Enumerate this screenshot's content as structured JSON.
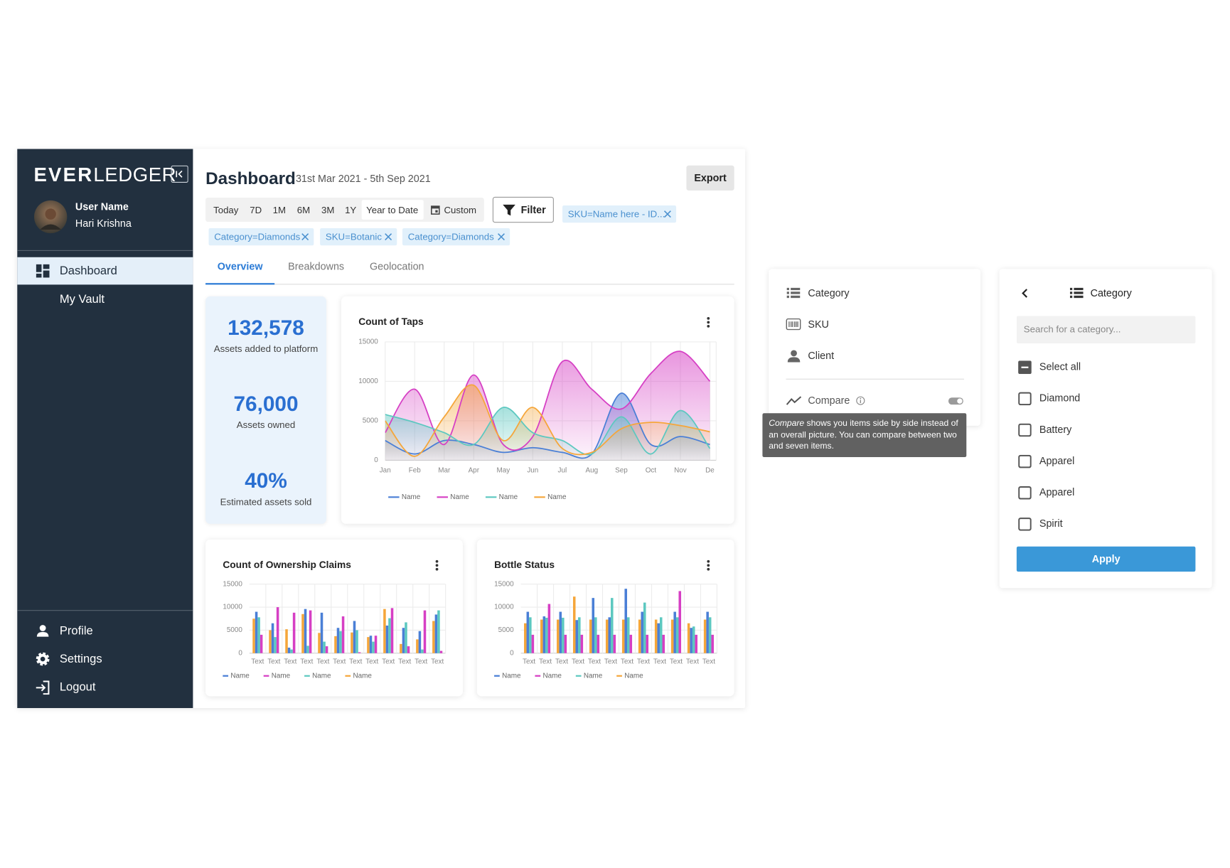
{
  "logo": {
    "bold": "EVER",
    "light": "LEDGER"
  },
  "user": {
    "label": "User Name",
    "name": "Hari Krishna"
  },
  "nav": [
    "Dashboard",
    "My Vault"
  ],
  "nav_bottom": [
    "Profile",
    "Settings",
    "Logout"
  ],
  "header": {
    "title": "Dashboard",
    "date_range": "31st Mar 2021 - 5th Sep 2021",
    "export": "Export"
  },
  "ranges": [
    "Today",
    "7D",
    "1M",
    "6M",
    "3M",
    "1Y",
    "Year to Date",
    "Custom"
  ],
  "filter": "Filter",
  "chips": [
    "SKU=Name here - ID...",
    "Category=Diamonds",
    "SKU=Botanic",
    "Category=Diamonds"
  ],
  "tabs": [
    "Overview",
    "Breakdowns",
    "Geolocation"
  ],
  "stats": [
    {
      "value": "132,578",
      "label": "Assets added to platform"
    },
    {
      "value": "76,000",
      "label": "Assets owned"
    },
    {
      "value": "40%",
      "label": "Estimated assets sold"
    }
  ],
  "chart_data": [
    {
      "type": "area",
      "title": "Count of Taps",
      "categories": [
        "Jan",
        "Feb",
        "Mar",
        "Apr",
        "May",
        "Jun",
        "Jul",
        "Aug",
        "Sep",
        "Oct",
        "Nov",
        "De"
      ],
      "ylim": [
        0,
        15000
      ],
      "yticks": [
        0,
        5000,
        10000,
        15000
      ],
      "grid": true,
      "series": [
        {
          "name": "Name",
          "color": "#4a7fd6",
          "values": [
            2500,
            800,
            2500,
            2000,
            1000,
            1600,
            1000,
            800,
            8500,
            2000,
            3000,
            2000
          ]
        },
        {
          "name": "Name",
          "color": "#d63fc4",
          "values": [
            3500,
            9000,
            2000,
            10800,
            2000,
            3000,
            12500,
            9000,
            6500,
            11000,
            13800,
            10000
          ]
        },
        {
          "name": "Name",
          "color": "#5cc8c0",
          "values": [
            5800,
            4800,
            3500,
            2000,
            6700,
            3500,
            2500,
            800,
            5500,
            800,
            6300,
            1500
          ]
        },
        {
          "name": "Name",
          "color": "#f5a63a",
          "values": [
            5000,
            500,
            5500,
            9500,
            2500,
            6700,
            1500,
            1000,
            4000,
            4800,
            4400,
            3600
          ]
        }
      ]
    },
    {
      "type": "bar",
      "title": "Count of Ownership Claims",
      "categories": [
        "Text",
        "Text",
        "Text",
        "Text",
        "Text",
        "Text",
        "Text",
        "Text",
        "Text",
        "Text",
        "Text",
        "Text"
      ],
      "ylim": [
        0,
        15000
      ],
      "yticks": [
        0,
        5000,
        10000,
        15000
      ],
      "grid": true,
      "series": [
        {
          "name": "Name",
          "color": "#4a7fd6",
          "values": [
            9000,
            6500,
            1200,
            9600,
            8800,
            5500,
            7000,
            3800,
            6000,
            5500,
            4800,
            8400
          ]
        },
        {
          "name": "Name",
          "color": "#d63fc4",
          "values": [
            4000,
            10000,
            8800,
            9300,
            1500,
            8000,
            200,
            3800,
            9800,
            1500,
            9300,
            500
          ]
        },
        {
          "name": "Name",
          "color": "#5cc8c0",
          "values": [
            7800,
            3500,
            800,
            1600,
            2500,
            4800,
            5000,
            2500,
            7600,
            6700,
            800,
            9300
          ]
        },
        {
          "name": "Name",
          "color": "#f5a63a",
          "values": [
            7500,
            5000,
            5200,
            8500,
            4400,
            3700,
            4500,
            3500,
            9600,
            2000,
            3000,
            7000
          ]
        }
      ]
    },
    {
      "type": "bar",
      "title": "Bottle Status",
      "categories": [
        "Text",
        "Text",
        "Text",
        "Text",
        "Text",
        "Text",
        "Text",
        "Text",
        "Text",
        "Text",
        "Text",
        "Text"
      ],
      "ylim": [
        0,
        15000
      ],
      "yticks": [
        0,
        5000,
        10000,
        15000
      ],
      "grid": true,
      "series": [
        {
          "name": "Name",
          "color": "#4a7fd6",
          "values": [
            9000,
            8000,
            9000,
            7200,
            12000,
            7800,
            14000,
            9000,
            6500,
            9000,
            5500,
            9000
          ]
        },
        {
          "name": "Name",
          "color": "#d63fc4",
          "values": [
            4000,
            10700,
            4000,
            4000,
            4000,
            4000,
            4000,
            4000,
            4000,
            13500,
            4000,
            4000
          ]
        },
        {
          "name": "Name",
          "color": "#5cc8c0",
          "values": [
            7800,
            7700,
            7700,
            7800,
            7800,
            12000,
            7800,
            11000,
            7800,
            7800,
            5800,
            7800
          ]
        },
        {
          "name": "Name",
          "color": "#f5a63a",
          "values": [
            6500,
            7300,
            7300,
            12300,
            7300,
            7300,
            7300,
            7300,
            7300,
            7300,
            6500,
            7300
          ]
        }
      ]
    }
  ],
  "filter_menu": {
    "items": [
      "Category",
      "SKU",
      "Client"
    ],
    "compare": "Compare",
    "tooltip": {
      "term": "Compare",
      "text": "shows you items side by side instead of an overall picture. You can compare between two and seven items."
    }
  },
  "category_panel": {
    "title": "Category",
    "search_placeholder": "Search for a category...",
    "options": [
      "Select all",
      "Diamond",
      "Battery",
      "Apparel",
      "Apparel",
      "Spirit"
    ],
    "apply": "Apply"
  }
}
